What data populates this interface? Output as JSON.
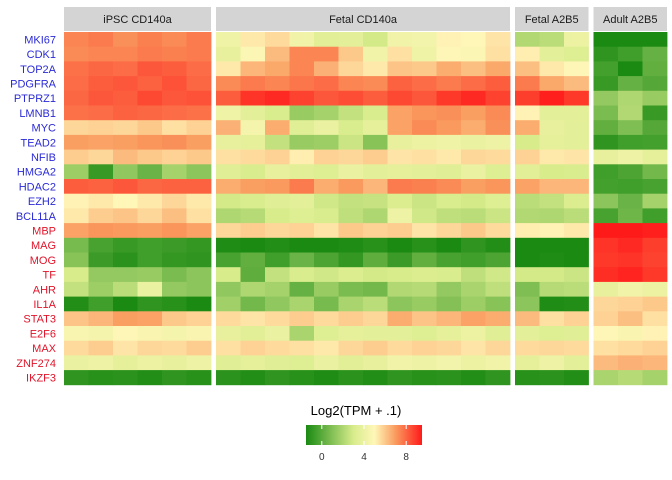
{
  "chart_data": {
    "type": "heatmap",
    "panels": [
      {
        "label": "iPSC CD140a",
        "samples": 6
      },
      {
        "label": "Fetal CD140a",
        "samples": 12
      },
      {
        "label": "Fetal A2B5",
        "samples": 3
      },
      {
        "label": "Adult A2B5",
        "samples": 3
      }
    ],
    "genes": [
      {
        "name": "MKI67",
        "group": "proliferation",
        "color": "#2a2ad6"
      },
      {
        "name": "CDK1",
        "group": "proliferation",
        "color": "#2a2ad6"
      },
      {
        "name": "TOP2A",
        "group": "proliferation",
        "color": "#2a2ad6"
      },
      {
        "name": "PDGFRA",
        "group": "proliferation",
        "color": "#2a2ad6"
      },
      {
        "name": "PTPRZ1",
        "group": "proliferation",
        "color": "#2a2ad6"
      },
      {
        "name": "LMNB1",
        "group": "proliferation",
        "color": "#2a2ad6"
      },
      {
        "name": "MYC",
        "group": "proliferation",
        "color": "#2a2ad6"
      },
      {
        "name": "TEAD2",
        "group": "proliferation",
        "color": "#2a2ad6"
      },
      {
        "name": "NFIB",
        "group": "proliferation",
        "color": "#2a2ad6"
      },
      {
        "name": "HMGA2",
        "group": "proliferation",
        "color": "#2a2ad6"
      },
      {
        "name": "HDAC2",
        "group": "proliferation",
        "color": "#2a2ad6"
      },
      {
        "name": "EZH2",
        "group": "proliferation",
        "color": "#2a2ad6"
      },
      {
        "name": "BCL11A",
        "group": "proliferation",
        "color": "#2a2ad6"
      },
      {
        "name": "MBP",
        "group": "maturation",
        "color": "#e0142a"
      },
      {
        "name": "MAG",
        "group": "maturation",
        "color": "#e0142a"
      },
      {
        "name": "MOG",
        "group": "maturation",
        "color": "#e0142a"
      },
      {
        "name": "TF",
        "group": "maturation",
        "color": "#e0142a"
      },
      {
        "name": "AHR",
        "group": "maturation",
        "color": "#e0142a"
      },
      {
        "name": "IL1A",
        "group": "maturation",
        "color": "#e0142a"
      },
      {
        "name": "STAT3",
        "group": "maturation",
        "color": "#e0142a"
      },
      {
        "name": "E2F6",
        "group": "maturation",
        "color": "#e0142a"
      },
      {
        "name": "MAX",
        "group": "maturation",
        "color": "#e0142a"
      },
      {
        "name": "ZNF274",
        "group": "maturation",
        "color": "#e0142a"
      },
      {
        "name": "IKZF3",
        "group": "maturation",
        "color": "#e0142a"
      }
    ],
    "values": [
      [
        7.4,
        7.6,
        7.2,
        7.5,
        7.3,
        7.6,
        4.2,
        5.3,
        5.6,
        4.3,
        3.5,
        3.6,
        2.9,
        4.3,
        4.4,
        5.1,
        5.0,
        5.4,
        2.1,
        2.3,
        4.0,
        -1.8,
        -1.5,
        -1.6
      ],
      [
        7.3,
        7.4,
        7.4,
        7.6,
        7.5,
        7.6,
        3.8,
        4.8,
        6.3,
        7.4,
        7.4,
        6.0,
        4.3,
        5.5,
        4.2,
        4.9,
        4.8,
        5.5,
        5.2,
        3.6,
        3.3,
        -1.0,
        -0.6,
        0.3
      ],
      [
        7.8,
        8.0,
        7.9,
        8.3,
        8.2,
        7.9,
        5.3,
        6.4,
        6.7,
        7.4,
        6.5,
        5.7,
        5.3,
        6.1,
        6.0,
        6.6,
        6.2,
        6.7,
        6.2,
        5.3,
        4.9,
        -0.5,
        -1.8,
        0.2
      ],
      [
        7.9,
        8.2,
        8.3,
        8.1,
        8.4,
        8.0,
        7.3,
        7.6,
        7.4,
        7.7,
        7.9,
        7.4,
        7.3,
        8.1,
        7.9,
        7.6,
        7.9,
        8.2,
        7.6,
        6.7,
        6.3,
        -0.8,
        0.3,
        -0.1
      ],
      [
        8.0,
        8.3,
        8.2,
        8.6,
        8.3,
        8.4,
        8.2,
        9.0,
        9.2,
        8.7,
        8.3,
        8.5,
        8.2,
        8.6,
        8.3,
        8.9,
        9.2,
        8.7,
        8.8,
        9.4,
        8.9,
        1.4,
        2.0,
        1.5
      ],
      [
        7.8,
        7.9,
        8.1,
        8.0,
        7.9,
        7.8,
        4.2,
        3.6,
        3.1,
        1.5,
        1.8,
        2.5,
        3.1,
        6.8,
        7.1,
        7.2,
        6.9,
        7.3,
        5.1,
        3.6,
        3.6,
        0.8,
        2.1,
        -0.8
      ],
      [
        5.7,
        5.8,
        5.7,
        6.0,
        5.5,
        5.8,
        6.5,
        4.5,
        6.6,
        3.4,
        3.9,
        3.1,
        3.7,
        6.8,
        7.3,
        7.0,
        6.6,
        7.2,
        6.6,
        3.8,
        3.6,
        0.2,
        0.9,
        -0.1
      ],
      [
        6.9,
        6.8,
        6.9,
        7.1,
        7.2,
        6.9,
        3.8,
        3.7,
        2.5,
        1.5,
        1.6,
        2.7,
        1.1,
        3.8,
        4.0,
        4.2,
        3.9,
        4.1,
        3.0,
        3.7,
        3.6,
        -1.0,
        -0.6,
        -0.5
      ],
      [
        5.9,
        5.7,
        6.3,
        6.0,
        5.8,
        6.0,
        5.5,
        5.6,
        5.8,
        5.2,
        5.8,
        5.7,
        5.9,
        5.4,
        5.5,
        5.3,
        5.7,
        5.6,
        5.8,
        5.3,
        5.4,
        3.8,
        4.1,
        3.7
      ],
      [
        1.6,
        -0.8,
        1.3,
        0.4,
        1.8,
        1.2,
        3.4,
        3.1,
        3.8,
        3.5,
        3.3,
        3.9,
        3.6,
        3.7,
        3.6,
        3.4,
        3.9,
        3.3,
        3.5,
        3.0,
        3.1,
        -0.6,
        -0.3,
        0.6
      ],
      [
        8.2,
        8.1,
        8.3,
        8.0,
        8.1,
        8.1,
        6.6,
        6.9,
        7.0,
        7.6,
        6.6,
        7.0,
        6.4,
        7.6,
        7.5,
        7.3,
        6.9,
        7.1,
        6.8,
        6.4,
        6.4,
        -0.5,
        -0.6,
        -0.4
      ],
      [
        5.1,
        5.3,
        5.0,
        5.3,
        5.7,
        5.3,
        2.9,
        3.1,
        3.4,
        3.6,
        2.8,
        2.5,
        2.6,
        3.2,
        2.7,
        3.1,
        2.9,
        3.3,
        2.3,
        2.5,
        3.2,
        1.2,
        0.4,
        1.8
      ],
      [
        5.3,
        5.9,
        6.1,
        5.7,
        6.2,
        5.5,
        2.0,
        2.2,
        3.0,
        3.3,
        3.1,
        2.4,
        2.0,
        4.1,
        2.8,
        2.4,
        2.3,
        2.7,
        2.1,
        2.0,
        2.3,
        -0.4,
        0.5,
        -0.6
      ],
      [
        6.8,
        7.1,
        7.0,
        6.9,
        7.1,
        6.8,
        5.7,
        5.9,
        5.7,
        5.8,
        5.4,
        6.0,
        5.8,
        5.9,
        5.4,
        5.7,
        6.0,
        5.6,
        5.2,
        5.1,
        5.3,
        9.5,
        9.6,
        9.4
      ],
      [
        0.7,
        -0.4,
        -0.8,
        -0.6,
        -0.7,
        -0.9,
        -1.4,
        -1.6,
        -1.3,
        -1.5,
        -1.7,
        -1.4,
        -1.2,
        -1.6,
        -1.2,
        -1.5,
        -1.0,
        -1.3,
        -1.6,
        -1.5,
        -1.5,
        9.0,
        9.2,
        8.8
      ],
      [
        1.1,
        -0.7,
        -1.1,
        -0.6,
        -0.9,
        -1.0,
        -0.4,
        0.2,
        -0.6,
        0.4,
        -0.3,
        -0.9,
        0.1,
        -0.7,
        0.2,
        -0.4,
        -0.6,
        -0.3,
        -1.5,
        -1.4,
        -1.5,
        8.9,
        9.0,
        8.7
      ],
      [
        3.0,
        1.4,
        1.4,
        1.5,
        0.8,
        1.2,
        3.0,
        0.1,
        2.5,
        3.1,
        2.8,
        3.2,
        2.9,
        3.0,
        3.2,
        3.1,
        2.4,
        2.8,
        2.9,
        2.9,
        2.7,
        9.1,
        9.3,
        8.9
      ],
      [
        2.5,
        1.6,
        2.3,
        3.9,
        1.4,
        1.2,
        1.3,
        2.0,
        1.8,
        0.3,
        1.5,
        0.8,
        0.6,
        2.1,
        2.2,
        1.4,
        1.9,
        2.4,
        0.9,
        2.2,
        2.3,
        3.8,
        4.3,
        4.0
      ],
      [
        -1.3,
        -0.6,
        -1.5,
        -1.0,
        -1.2,
        -1.7,
        1.7,
        0.6,
        1.3,
        1.9,
        0.7,
        1.9,
        2.3,
        1.2,
        1.5,
        1.0,
        1.6,
        1.1,
        1.2,
        -1.4,
        -1.3,
        5.7,
        5.8,
        6.0
      ],
      [
        6.1,
        6.4,
        6.9,
        6.8,
        6.0,
        5.8,
        5.6,
        5.4,
        5.6,
        5.9,
        5.6,
        5.9,
        5.7,
        6.6,
        6.1,
        6.4,
        6.8,
        6.6,
        6.3,
        5.5,
        5.8,
        5.8,
        6.2,
        5.5
      ],
      [
        4.6,
        4.5,
        4.9,
        4.7,
        4.5,
        4.7,
        3.8,
        3.5,
        3.9,
        1.9,
        3.3,
        3.7,
        3.6,
        3.6,
        3.3,
        3.7,
        4.0,
        3.4,
        3.6,
        3.3,
        3.4,
        4.9,
        4.7,
        5.1
      ],
      [
        5.6,
        5.9,
        5.4,
        5.7,
        5.6,
        5.9,
        5.5,
        5.8,
        5.6,
        5.5,
        5.3,
        5.7,
        5.9,
        5.6,
        5.8,
        5.7,
        5.4,
        5.7,
        5.6,
        5.7,
        5.6,
        5.5,
        5.6,
        5.8
      ],
      [
        3.9,
        4.1,
        3.7,
        4.0,
        3.8,
        4.1,
        3.4,
        3.7,
        3.4,
        3.3,
        3.9,
        3.5,
        3.8,
        4.3,
        4.1,
        4.4,
        4.0,
        4.3,
        3.7,
        4.1,
        3.6,
        6.3,
        6.5,
        6.4
      ],
      [
        -1.0,
        -1.2,
        -1.1,
        -1.3,
        -1.0,
        -1.2,
        -1.1,
        -1.3,
        -1.0,
        -1.2,
        -1.4,
        -1.1,
        -1.3,
        -1.0,
        -1.2,
        -1.1,
        -1.3,
        -1.0,
        -1.2,
        -1.1,
        -1.3,
        1.9,
        2.2,
        1.8
      ]
    ],
    "color_scale": {
      "stops": [
        {
          "value": -1.5,
          "color": "#1a8a12"
        },
        {
          "value": 3.0,
          "color": "#d8ec8c"
        },
        {
          "value": 5.0,
          "color": "#fff7b8"
        },
        {
          "value": 7.0,
          "color": "#fa9a5e"
        },
        {
          "value": 9.5,
          "color": "#ff1a1a"
        }
      ],
      "range": [
        -1.5,
        9.5
      ]
    },
    "legend": {
      "title": "Log2(TPM + .1)",
      "ticks": [
        0,
        4,
        8
      ],
      "placement": "bottom"
    },
    "strip_color": "#d4d4d4"
  }
}
